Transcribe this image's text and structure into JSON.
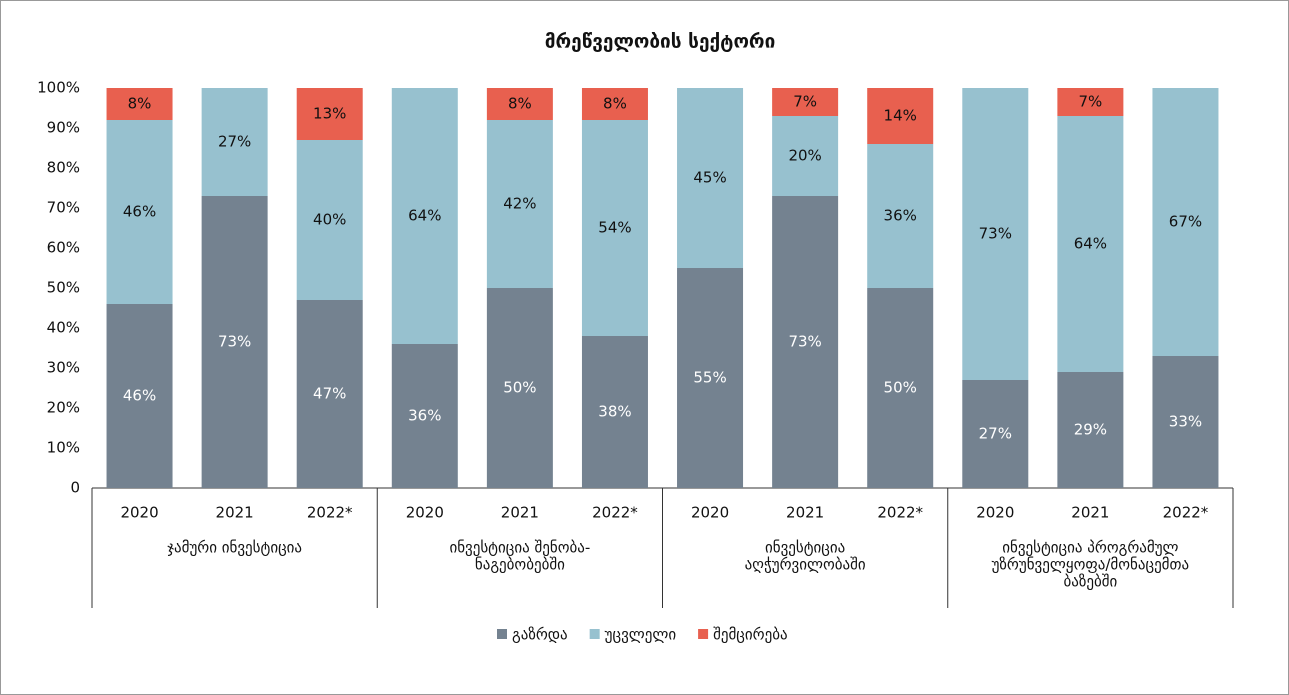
{
  "chart_data": {
    "type": "stacked-bar",
    "title": "მრეწველობის სექტორი",
    "categories": [
      "2020",
      "2021",
      "2022*",
      "2020",
      "2021",
      "2022*",
      "2020",
      "2021",
      "2022*",
      "2020",
      "2021",
      "2022*"
    ],
    "groups": [
      [
        "ჯამური ინვესტიცია"
      ],
      [
        "ინვესტიცია შენობა-",
        "ნაგებობებში"
      ],
      [
        "ინვესტიცია",
        "აღჭურვილობაში"
      ],
      [
        "ინვესტიცია პროგრამულ",
        "უზრუნველყოფა/მონაცემთა",
        "ბაზებში"
      ]
    ],
    "group_size": 3,
    "series": [
      {
        "name": "გაზრდა",
        "color": "#748290",
        "label_color": "#ffffff",
        "values": [
          46,
          73,
          47,
          36,
          50,
          38,
          55,
          73,
          50,
          27,
          29,
          33
        ],
        "value_labels": [
          "46%",
          "73%",
          "47%",
          "36%",
          "50%",
          "38%",
          "55%",
          "73%",
          "50%",
          "27%",
          "29%",
          "33%"
        ]
      },
      {
        "name": "უცვლელი",
        "color": "#97c1cf",
        "label_color": "#111111",
        "values": [
          46,
          27,
          40,
          64,
          42,
          54,
          45,
          20,
          36,
          73,
          64,
          67
        ],
        "value_labels": [
          "46%",
          "27%",
          "40%",
          "64%",
          "42%",
          "54%",
          "45%",
          "20%",
          "36%",
          "73%",
          "64%",
          "67%"
        ]
      },
      {
        "name": "შემცირება",
        "color": "#e8604f",
        "label_color": "#111111",
        "values": [
          8,
          null,
          13,
          null,
          8,
          8,
          null,
          7,
          14,
          null,
          7,
          null
        ],
        "value_labels": [
          "8%",
          null,
          "13%",
          null,
          "8%",
          "8%",
          null,
          "7%",
          "14%",
          null,
          "7%",
          null
        ]
      }
    ],
    "ylim": [
      0,
      100
    ],
    "yticks": [
      0,
      {
        "value": 10,
        "label": "10%"
      },
      {
        "value": 20,
        "label": "20%"
      },
      {
        "value": 30,
        "label": "30%"
      },
      {
        "value": 40,
        "label": "40%"
      },
      {
        "value": 50,
        "label": "50%"
      },
      {
        "value": 60,
        "label": "60%"
      },
      {
        "value": 70,
        "label": "70%"
      },
      {
        "value": 80,
        "label": "80%"
      },
      {
        "value": 90,
        "label": "90%"
      },
      {
        "value": 100,
        "label": "100%"
      }
    ],
    "legend": "bottom"
  }
}
